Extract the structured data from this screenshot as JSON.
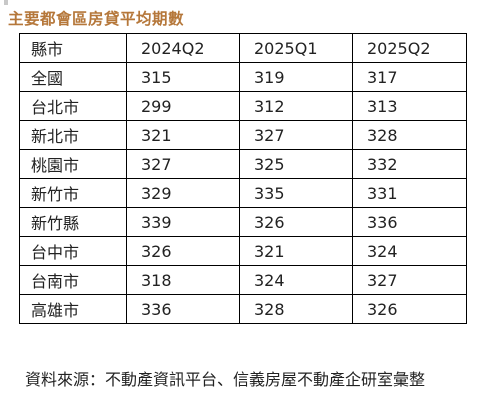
{
  "title": "主要都會區房貸平均期數",
  "table": {
    "headers": [
      "縣市",
      "2024Q2",
      "2025Q1",
      "2025Q2"
    ],
    "rows": [
      [
        "全國",
        "315",
        "319",
        "317"
      ],
      [
        "台北市",
        "299",
        "312",
        "313"
      ],
      [
        "新北市",
        "321",
        "327",
        "328"
      ],
      [
        "桃園市",
        "327",
        "325",
        "332"
      ],
      [
        "新竹市",
        "329",
        "335",
        "331"
      ],
      [
        "新竹縣",
        "339",
        "326",
        "336"
      ],
      [
        "台中市",
        "326",
        "321",
        "324"
      ],
      [
        "台南市",
        "318",
        "324",
        "327"
      ],
      [
        "高雄市",
        "336",
        "328",
        "326"
      ]
    ]
  },
  "source": "資料來源：不動產資訊平台、信義房屋不動產企研室彙整"
}
